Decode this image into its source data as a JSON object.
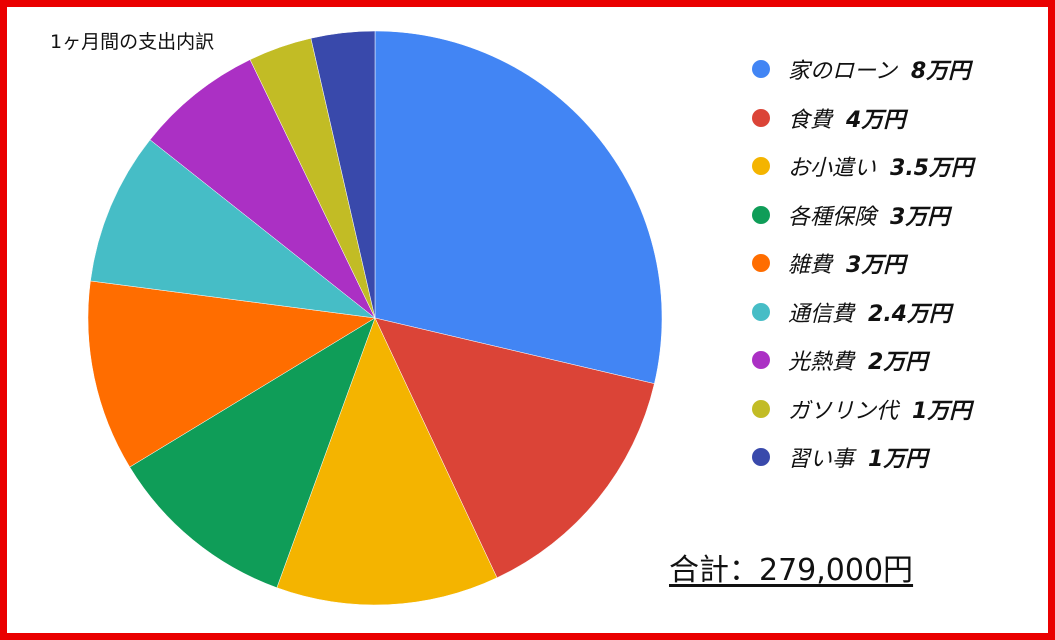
{
  "chart_data": {
    "type": "pie",
    "title": "1ヶ月間の支出内訳",
    "unit": "万円",
    "legend_position": "right",
    "slices": [
      {
        "label": "家のローン",
        "value": 8,
        "value_label": "8万円",
        "color": "#4285f4"
      },
      {
        "label": "食費",
        "value": 4,
        "value_label": "4万円",
        "color": "#db4437"
      },
      {
        "label": "お小遣い",
        "value": 3.5,
        "value_label": "3.5万円",
        "color": "#f4b400"
      },
      {
        "label": "各種保険",
        "value": 3,
        "value_label": "3万円",
        "color": "#0f9d58"
      },
      {
        "label": "雑費",
        "value": 3,
        "value_label": "3万円",
        "color": "#ff6d00"
      },
      {
        "label": "通信費",
        "value": 2.4,
        "value_label": "2.4万円",
        "color": "#46bdc6"
      },
      {
        "label": "光熱費",
        "value": 2,
        "value_label": "2万円",
        "color": "#ab30c4"
      },
      {
        "label": "ガソリン代",
        "value": 1,
        "value_label": "1万円",
        "color": "#c2bc25"
      },
      {
        "label": "習い事",
        "value": 1,
        "value_label": "1万円",
        "color": "#3949ab"
      }
    ]
  },
  "total": {
    "text": "合計：279,000円"
  },
  "frame": {
    "border_color": "#ea0000"
  }
}
